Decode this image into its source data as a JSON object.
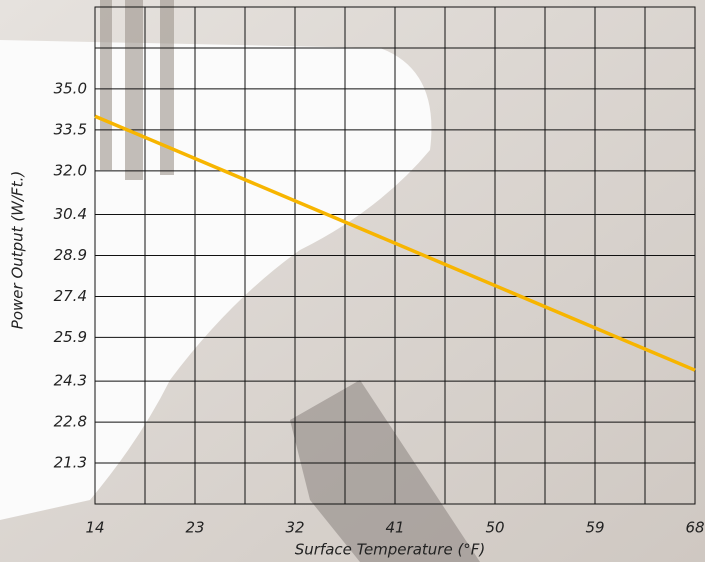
{
  "chart_data": {
    "type": "line",
    "x_label": "Surface Temperature (°F)",
    "y_label": "Power Output (W/Ft.)",
    "x": [
      14,
      68
    ],
    "series": [
      {
        "color": "#f7b500",
        "values": [
          34.0,
          24.7
        ]
      }
    ],
    "xlim": [
      14,
      68
    ],
    "xticks": [
      14,
      23,
      32,
      41,
      50,
      59,
      68
    ],
    "ylim": [
      19.8,
      38.0
    ],
    "yticks": [
      {
        "value": 35,
        "label": "35.0"
      },
      33.5,
      {
        "value": 32,
        "label": "32.0"
      },
      30.4,
      28.9,
      27.4,
      25.9,
      24.3,
      22.8,
      21.3
    ],
    "grid": true
  }
}
